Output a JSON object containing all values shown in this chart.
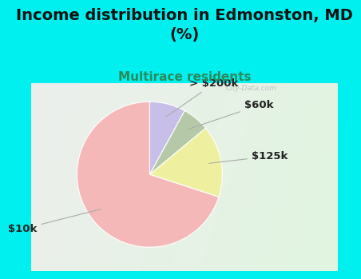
{
  "title": "Income distribution in Edmonston, MD\n(%)",
  "subtitle": "Multirace residents",
  "slices": [
    {
      "label": "> $200k",
      "value": 8,
      "color": "#c8bfe8"
    },
    {
      "label": "$60k",
      "value": 6,
      "color": "#b5c9a8"
    },
    {
      "label": "$125k",
      "value": 16,
      "color": "#eef0a0"
    },
    {
      "label": "$10k",
      "value": 70,
      "color": "#f5b8b8"
    }
  ],
  "background_color": "#00f0f0",
  "chart_bg_top": "#dff0e8",
  "chart_bg_bottom": "#e8f8f0",
  "title_fontsize": 14,
  "subtitle_fontsize": 11,
  "subtitle_color": "#2a8a5a",
  "label_fontsize": 9.5,
  "startangle": 90,
  "watermark": "City-Data.com"
}
